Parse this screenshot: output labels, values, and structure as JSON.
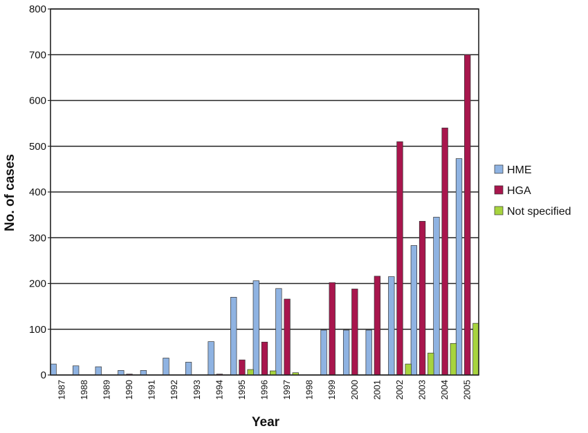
{
  "chart_data": {
    "type": "bar",
    "xlabel": "Year",
    "ylabel": "No. of cases",
    "ylim": [
      0,
      800
    ],
    "yticks": [
      "0",
      "100",
      "200",
      "300",
      "400",
      "500",
      "600",
      "700",
      "800"
    ],
    "grid": "horizontal",
    "legend_position": "right",
    "categories": [
      "1987",
      "1988",
      "1989",
      "1990",
      "1991",
      "1992",
      "1993",
      "1994",
      "1995",
      "1996",
      "1997",
      "1998",
      "1999",
      "2000",
      "2001",
      "2002",
      "2003",
      "2004",
      "2005"
    ],
    "series": [
      {
        "name": "HME",
        "color": "#8fb3e2",
        "values": [
          24,
          20,
          18,
          10,
          10,
          37,
          28,
          73,
          170,
          206,
          189,
          0,
          98,
          98,
          98,
          215,
          283,
          345,
          473
        ]
      },
      {
        "name": "HGA",
        "color": "#a8164d",
        "values": [
          0,
          0,
          0,
          2,
          0,
          0,
          0,
          2,
          33,
          72,
          166,
          0,
          202,
          188,
          216,
          510,
          336,
          540,
          700
        ]
      },
      {
        "name": "Not specified",
        "color": "#a7d43e",
        "values": [
          0,
          0,
          0,
          0,
          0,
          0,
          0,
          0,
          12,
          9,
          5,
          0,
          0,
          0,
          0,
          24,
          48,
          69,
          113
        ]
      }
    ]
  }
}
